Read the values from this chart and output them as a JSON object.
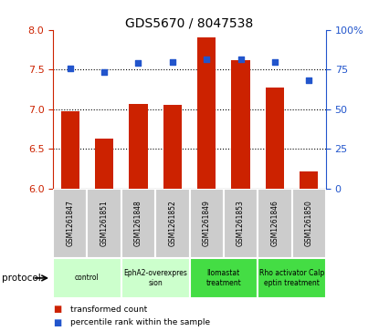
{
  "title": "GDS5670 / 8047538",
  "samples": [
    "GSM1261847",
    "GSM1261851",
    "GSM1261848",
    "GSM1261852",
    "GSM1261849",
    "GSM1261853",
    "GSM1261846",
    "GSM1261850"
  ],
  "bar_values": [
    6.97,
    6.63,
    7.07,
    7.06,
    7.9,
    7.62,
    7.27,
    6.22
  ],
  "scatter_values": [
    75.5,
    73.5,
    79.0,
    79.5,
    81.5,
    81.5,
    80.0,
    68.0
  ],
  "ylim_left": [
    6.0,
    8.0
  ],
  "ylim_right": [
    0,
    100
  ],
  "yticks_left": [
    6.0,
    6.5,
    7.0,
    7.5,
    8.0
  ],
  "yticks_right": [
    0,
    25,
    50,
    75,
    100
  ],
  "bar_color": "#cc2200",
  "scatter_color": "#2255cc",
  "bar_bottom": 6.0,
  "protocols": [
    {
      "label": "control",
      "indices": [
        0,
        1
      ],
      "color": "#ccffcc"
    },
    {
      "label": "EphA2-overexpres\nsion",
      "indices": [
        2,
        3
      ],
      "color": "#ccffcc"
    },
    {
      "label": "Ilomastat\ntreatment",
      "indices": [
        4,
        5
      ],
      "color": "#44dd44"
    },
    {
      "label": "Rho activator Calp\neptin treatment",
      "indices": [
        6,
        7
      ],
      "color": "#44dd44"
    }
  ],
  "protocol_label": "protocol",
  "legend_bar_label": "transformed count",
  "legend_scatter_label": "percentile rank within the sample",
  "tick_label_color_left": "#cc2200",
  "tick_label_color_right": "#2255cc",
  "grid_lines": [
    6.5,
    7.0,
    7.5
  ],
  "bar_width": 0.55,
  "sample_box_color": "#cccccc",
  "fig_width": 4.15,
  "fig_height": 3.63,
  "fig_dpi": 100
}
